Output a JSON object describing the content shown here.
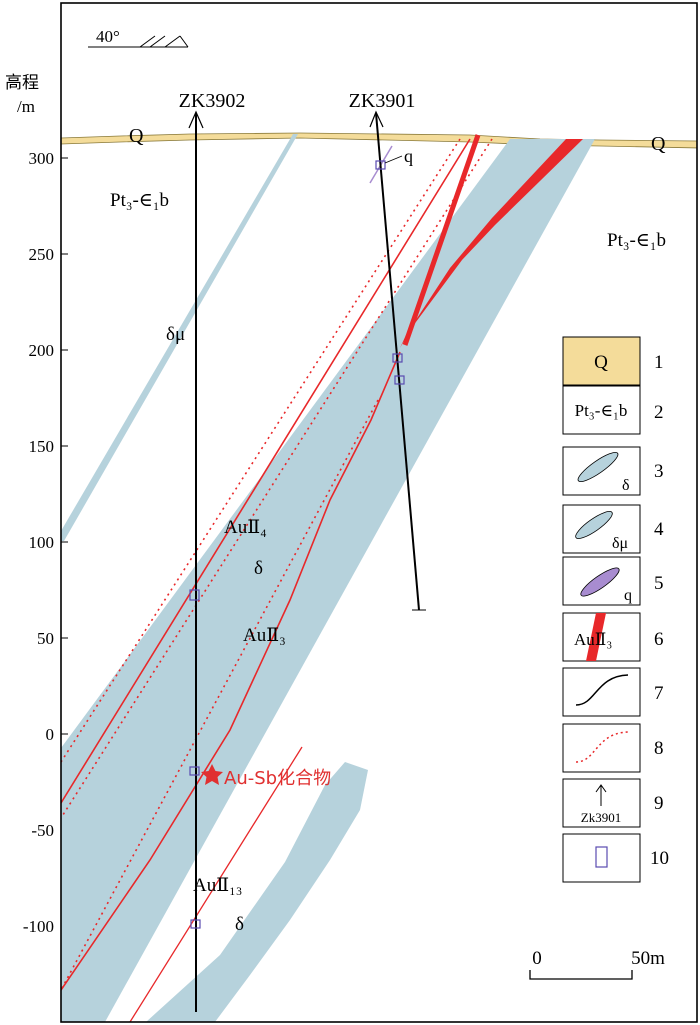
{
  "orientation": {
    "label": "40°"
  },
  "y_axis": {
    "title": "高程",
    "unit": "/m",
    "ticks": [
      {
        "value": 300,
        "label": "300"
      },
      {
        "value": 250,
        "label": "250"
      },
      {
        "value": 200,
        "label": "200"
      },
      {
        "value": 150,
        "label": "150"
      },
      {
        "value": 100,
        "label": "100"
      },
      {
        "value": 50,
        "label": "50"
      },
      {
        "value": 0,
        "label": "0"
      },
      {
        "value": -50,
        "label": "-50"
      },
      {
        "value": -100,
        "label": "-100"
      }
    ]
  },
  "boreholes": [
    {
      "id": "ZK3902"
    },
    {
      "id": "ZK3901"
    }
  ],
  "map_labels": {
    "q_left": "Q",
    "q_right": "Q",
    "strata_left": "Pt₃-∈₁b",
    "strata_right": "Pt₃-∈₁b",
    "dyke_dm": "δμ",
    "quartz_q": "q",
    "ore_au2_4": "AuⅡ₄",
    "delta_1": "δ",
    "ore_au2_3": "AuⅡ₃",
    "mineral_point": "Au-Sb化合物",
    "ore_au2_13": "AuⅡ₁₃",
    "delta_2": "δ"
  },
  "legend": [
    {
      "num": "1",
      "label": "Q"
    },
    {
      "num": "2",
      "label": "Pt₃-∈₁b"
    },
    {
      "num": "3",
      "label": "δ"
    },
    {
      "num": "4",
      "label": "δμ"
    },
    {
      "num": "5",
      "label": "q"
    },
    {
      "num": "6",
      "label": "AuⅡ₃"
    },
    {
      "num": "7",
      "label": ""
    },
    {
      "num": "8",
      "label": ""
    },
    {
      "num": "9",
      "label": "Zk3901"
    },
    {
      "num": "10",
      "label": ""
    }
  ],
  "scale_bar": {
    "start": "0",
    "end": "50m"
  },
  "colors": {
    "quaternary": "#f4dc9a",
    "diorite": "#b6d2dc",
    "ore_body": "#e8282a",
    "quartz": "#a88cd0",
    "sample": "#5a4bb0",
    "star": "#e03030"
  }
}
